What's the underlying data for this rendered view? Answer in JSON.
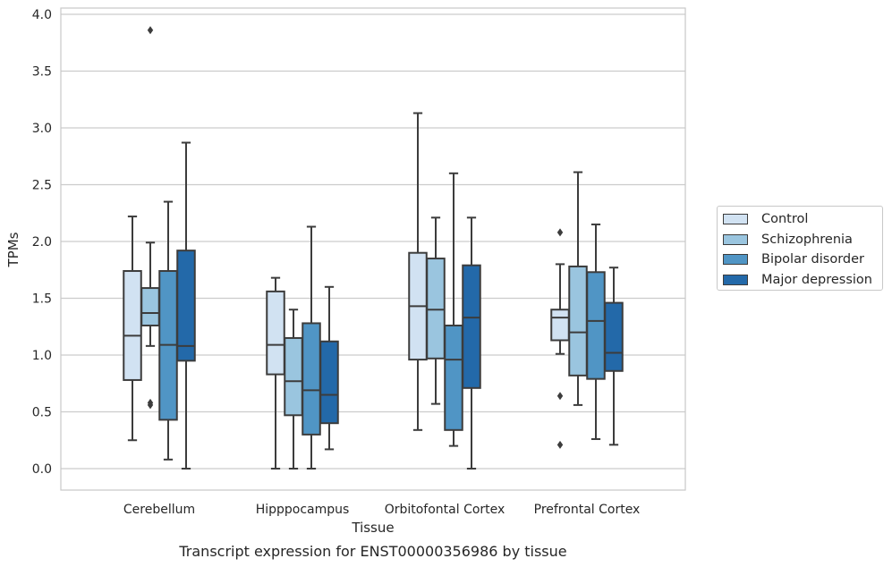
{
  "chart_data": {
    "type": "box",
    "title": "",
    "caption": "Transcript expression for ENST00000356986 by tissue",
    "xlabel": "Tissue",
    "ylabel": "TPMs",
    "ylim": [
      -0.18,
      4.05
    ],
    "yticks": [
      "0.0",
      "0.5",
      "1.0",
      "1.5",
      "2.0",
      "2.5",
      "3.0",
      "3.5",
      "4.0"
    ],
    "grid": "horizontal",
    "legend_position": "right",
    "categories": [
      "Cerebellum",
      "Hipppocampus",
      "Orbitofontal Cortex",
      "Prefrontal Cortex"
    ],
    "series": [
      {
        "name": "Control",
        "color": "#d1e2f2",
        "boxes": [
          {
            "whislo": 0.25,
            "q1": 0.78,
            "med": 1.17,
            "q3": 1.74,
            "whishi": 2.22,
            "fliers": []
          },
          {
            "whislo": 0.0,
            "q1": 0.83,
            "med": 1.09,
            "q3": 1.56,
            "whishi": 1.68,
            "fliers": []
          },
          {
            "whislo": 0.34,
            "q1": 0.96,
            "med": 1.43,
            "q3": 1.9,
            "whishi": 3.13,
            "fliers": []
          },
          {
            "whislo": 1.01,
            "q1": 1.13,
            "med": 1.33,
            "q3": 1.4,
            "whishi": 1.8,
            "fliers": [
              2.08,
              0.64,
              0.21
            ]
          }
        ]
      },
      {
        "name": "Schizophrenia",
        "color": "#9ac5df",
        "boxes": [
          {
            "whislo": 1.08,
            "q1": 1.26,
            "med": 1.37,
            "q3": 1.59,
            "whishi": 1.99,
            "fliers": [
              3.86,
              0.58,
              0.56
            ]
          },
          {
            "whislo": 0.0,
            "q1": 0.47,
            "med": 0.77,
            "q3": 1.15,
            "whishi": 1.4,
            "fliers": []
          },
          {
            "whislo": 0.57,
            "q1": 0.97,
            "med": 1.4,
            "q3": 1.85,
            "whishi": 2.21,
            "fliers": []
          },
          {
            "whislo": 0.56,
            "q1": 0.82,
            "med": 1.2,
            "q3": 1.78,
            "whishi": 2.61,
            "fliers": []
          }
        ]
      },
      {
        "name": "Bipolar disorder",
        "color": "#5095c5",
        "boxes": [
          {
            "whislo": 0.08,
            "q1": 0.43,
            "med": 1.09,
            "q3": 1.74,
            "whishi": 2.35,
            "fliers": []
          },
          {
            "whislo": 0.0,
            "q1": 0.3,
            "med": 0.69,
            "q3": 1.28,
            "whishi": 2.13,
            "fliers": []
          },
          {
            "whislo": 0.2,
            "q1": 0.34,
            "med": 0.96,
            "q3": 1.26,
            "whishi": 2.6,
            "fliers": []
          },
          {
            "whislo": 0.26,
            "q1": 0.79,
            "med": 1.3,
            "q3": 1.73,
            "whishi": 2.15,
            "fliers": []
          }
        ]
      },
      {
        "name": "Major depression",
        "color": "#2369a9",
        "boxes": [
          {
            "whislo": 0.0,
            "q1": 0.95,
            "med": 1.08,
            "q3": 1.92,
            "whishi": 2.87,
            "fliers": []
          },
          {
            "whislo": 0.17,
            "q1": 0.4,
            "med": 0.65,
            "q3": 1.12,
            "whishi": 1.6,
            "fliers": []
          },
          {
            "whislo": 0.0,
            "q1": 0.71,
            "med": 1.33,
            "q3": 1.79,
            "whishi": 2.21,
            "fliers": []
          },
          {
            "whislo": 0.21,
            "q1": 0.86,
            "med": 1.02,
            "q3": 1.46,
            "whishi": 1.77,
            "fliers": []
          }
        ]
      }
    ]
  }
}
